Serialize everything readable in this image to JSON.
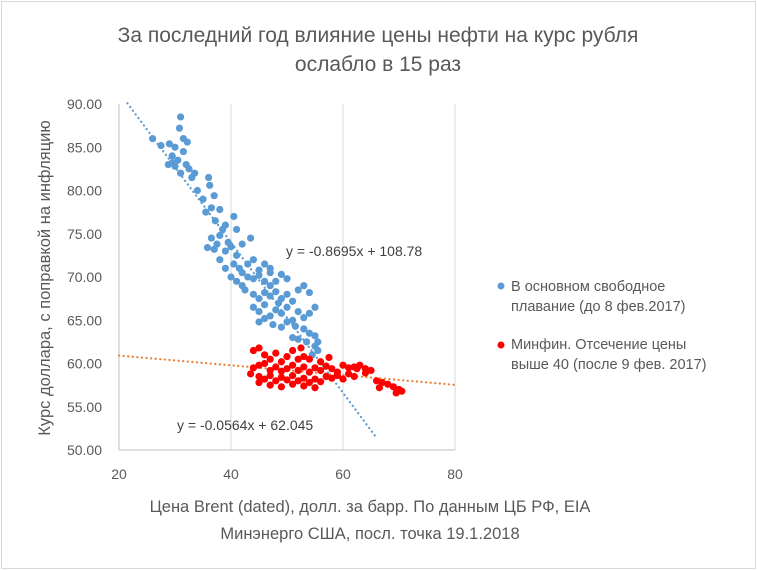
{
  "chart_data": {
    "type": "scatter",
    "title_lines": [
      "За последний год влияние цены нефти на курс рубля",
      "ослабло в 15 раз"
    ],
    "xlabel_lines": [
      "Цена Brent (dated), долл. за барр. По данным ЦБ РФ, EIA",
      "Минэнерго США, посл. точка 19.1.2018"
    ],
    "ylabel": "Курс доллара, с поправкой на инфляцию",
    "xlim": [
      20,
      80
    ],
    "ylim": [
      50,
      90
    ],
    "x_ticks": [
      20,
      40,
      60,
      80
    ],
    "y_ticks": [
      50,
      55,
      60,
      65,
      70,
      75,
      80,
      85,
      90
    ],
    "y_tick_labels": [
      "50.00",
      "55.00",
      "60.00",
      "65.00",
      "70.00",
      "75.00",
      "80.00",
      "85.00",
      "90.00"
    ],
    "grid": "vertical",
    "legend_position": "right",
    "series": [
      {
        "name_lines": [
          "В основном свободное",
          "плавание (до 8 фев.2017)"
        ],
        "color": "#5b9bd5",
        "trend": {
          "slope": -0.8695,
          "intercept": 108.78,
          "x_range": [
            21.5,
            66
          ],
          "equation": "y = -0.8695x + 108.78",
          "trend_color": "#5b9bd5"
        },
        "points": [
          [
            26,
            86
          ],
          [
            27.5,
            85.2
          ],
          [
            29,
            85.4
          ],
          [
            30,
            85
          ],
          [
            31,
            88.5
          ],
          [
            30.8,
            87.2
          ],
          [
            29.5,
            84
          ],
          [
            31.5,
            86
          ],
          [
            32.2,
            85.6
          ],
          [
            28.8,
            83
          ],
          [
            30.5,
            83.5
          ],
          [
            31.5,
            84.5
          ],
          [
            32.5,
            82.5
          ],
          [
            33,
            81.5
          ],
          [
            31,
            82
          ],
          [
            30,
            82.8
          ],
          [
            29.5,
            83.2
          ],
          [
            33.5,
            82
          ],
          [
            32,
            83
          ],
          [
            34,
            80
          ],
          [
            35,
            79
          ],
          [
            36,
            81.5
          ],
          [
            36.2,
            80.6
          ],
          [
            35.5,
            77.5
          ],
          [
            36.5,
            78
          ],
          [
            37,
            79.4
          ],
          [
            37.2,
            76.5
          ],
          [
            38,
            77.8
          ],
          [
            38.5,
            75.5
          ],
          [
            39,
            76
          ],
          [
            36.5,
            74.5
          ],
          [
            38,
            74.8
          ],
          [
            39.5,
            74
          ],
          [
            40.5,
            77
          ],
          [
            37,
            73.2
          ],
          [
            38,
            72
          ],
          [
            39,
            73
          ],
          [
            40,
            73.5
          ],
          [
            41,
            72.5
          ],
          [
            42,
            73.8
          ],
          [
            43,
            71.5
          ],
          [
            44,
            72
          ],
          [
            45,
            70.8
          ],
          [
            46,
            71.5
          ],
          [
            47,
            70.5
          ],
          [
            40,
            70
          ],
          [
            41,
            69.5
          ],
          [
            41.5,
            71
          ],
          [
            42,
            70.5
          ],
          [
            43,
            70
          ],
          [
            44,
            69.8
          ],
          [
            45,
            70.2
          ],
          [
            46,
            69.5
          ],
          [
            47,
            69
          ],
          [
            48,
            69.5
          ],
          [
            49,
            70.3
          ],
          [
            50,
            69.8
          ],
          [
            42.5,
            68.5
          ],
          [
            44,
            68
          ],
          [
            45,
            67.5
          ],
          [
            46,
            68.2
          ],
          [
            47,
            67.8
          ],
          [
            48,
            68.3
          ],
          [
            49,
            67.5
          ],
          [
            50,
            68
          ],
          [
            51,
            67.2
          ],
          [
            52,
            68.5
          ],
          [
            53,
            69
          ],
          [
            54,
            68.2
          ],
          [
            44,
            66.5
          ],
          [
            45,
            66
          ],
          [
            46,
            66.8
          ],
          [
            47,
            65.5
          ],
          [
            48,
            66.2
          ],
          [
            49,
            65.8
          ],
          [
            50,
            66.5
          ],
          [
            51,
            65
          ],
          [
            52,
            66
          ],
          [
            53,
            65.3
          ],
          [
            54,
            65.8
          ],
          [
            55,
            66.5
          ],
          [
            45,
            64.8
          ],
          [
            46,
            65.2
          ],
          [
            47.5,
            64.5
          ],
          [
            49,
            64.2
          ],
          [
            50,
            64.8
          ],
          [
            51.5,
            64.3
          ],
          [
            53,
            64
          ],
          [
            54,
            63.5
          ],
          [
            55,
            63.2
          ],
          [
            52,
            62.8
          ],
          [
            53.5,
            62.5
          ],
          [
            55,
            62
          ],
          [
            55.5,
            61.5
          ],
          [
            54.5,
            61
          ],
          [
            55.5,
            62.5
          ],
          [
            51,
            63
          ],
          [
            48.5,
            67
          ],
          [
            47,
            71
          ],
          [
            43.5,
            74.5
          ],
          [
            41,
            75.5
          ],
          [
            42,
            69
          ],
          [
            40.5,
            71.5
          ],
          [
            39,
            71
          ],
          [
            37.5,
            73.8
          ],
          [
            35.8,
            73.4
          ]
        ]
      },
      {
        "name_lines": [
          "Минфин. Отсечение цены",
          "выше 40 (после 9 фев. 2017)"
        ],
        "color": "#ff0000",
        "trend": {
          "slope": -0.0564,
          "intercept": 62.045,
          "x_range": [
            20,
            80
          ],
          "equation": "y = -0.0564x + 62.045",
          "trend_color": "#ed7d31"
        },
        "points": [
          [
            44,
            61.5
          ],
          [
            45,
            61.8
          ],
          [
            46,
            61
          ],
          [
            47,
            60.5
          ],
          [
            48,
            61.2
          ],
          [
            49,
            60.2
          ],
          [
            50,
            60.8
          ],
          [
            51,
            61.5
          ],
          [
            52,
            60.5
          ],
          [
            53,
            60.8
          ],
          [
            44,
            59.5
          ],
          [
            45,
            59.8
          ],
          [
            46,
            60
          ],
          [
            47,
            59.2
          ],
          [
            48,
            59.6
          ],
          [
            49,
            59.1
          ],
          [
            50,
            59.4
          ],
          [
            51,
            59.8
          ],
          [
            52,
            59.2
          ],
          [
            53,
            59.6
          ],
          [
            54,
            59
          ],
          [
            55,
            59.5
          ],
          [
            56,
            59.2
          ],
          [
            57,
            59.7
          ],
          [
            58,
            59.4
          ],
          [
            59,
            59
          ],
          [
            60,
            59.8
          ],
          [
            61,
            59.5
          ],
          [
            62,
            59.6
          ],
          [
            63,
            59.8
          ],
          [
            64,
            59.4
          ],
          [
            65,
            59.2
          ],
          [
            45,
            58.5
          ],
          [
            46,
            58.2
          ],
          [
            47,
            58.6
          ],
          [
            48,
            58
          ],
          [
            49,
            58.4
          ],
          [
            50,
            58.1
          ],
          [
            51,
            58.6
          ],
          [
            52,
            58
          ],
          [
            53,
            58.3
          ],
          [
            54,
            57.8
          ],
          [
            55,
            58.2
          ],
          [
            56,
            57.9
          ],
          [
            57,
            58.5
          ],
          [
            58,
            58.3
          ],
          [
            59,
            58.6
          ],
          [
            60,
            58.2
          ],
          [
            61,
            58.8
          ],
          [
            62,
            58.5
          ],
          [
            45,
            57.8
          ],
          [
            47,
            57.5
          ],
          [
            49,
            57.3
          ],
          [
            51,
            57.6
          ],
          [
            53,
            57.4
          ],
          [
            55,
            57.2
          ],
          [
            66,
            58
          ],
          [
            67,
            57.8
          ],
          [
            68,
            57.6
          ],
          [
            69,
            57.3
          ],
          [
            70,
            57
          ],
          [
            69.5,
            56.6
          ],
          [
            70.5,
            56.8
          ],
          [
            43.5,
            58.8
          ],
          [
            52.5,
            61.8
          ],
          [
            54,
            60.5
          ],
          [
            56,
            60.2
          ],
          [
            57.5,
            60.7
          ],
          [
            62.5,
            59.4
          ],
          [
            64,
            58.9
          ],
          [
            66.5,
            57.2
          ]
        ]
      }
    ]
  }
}
